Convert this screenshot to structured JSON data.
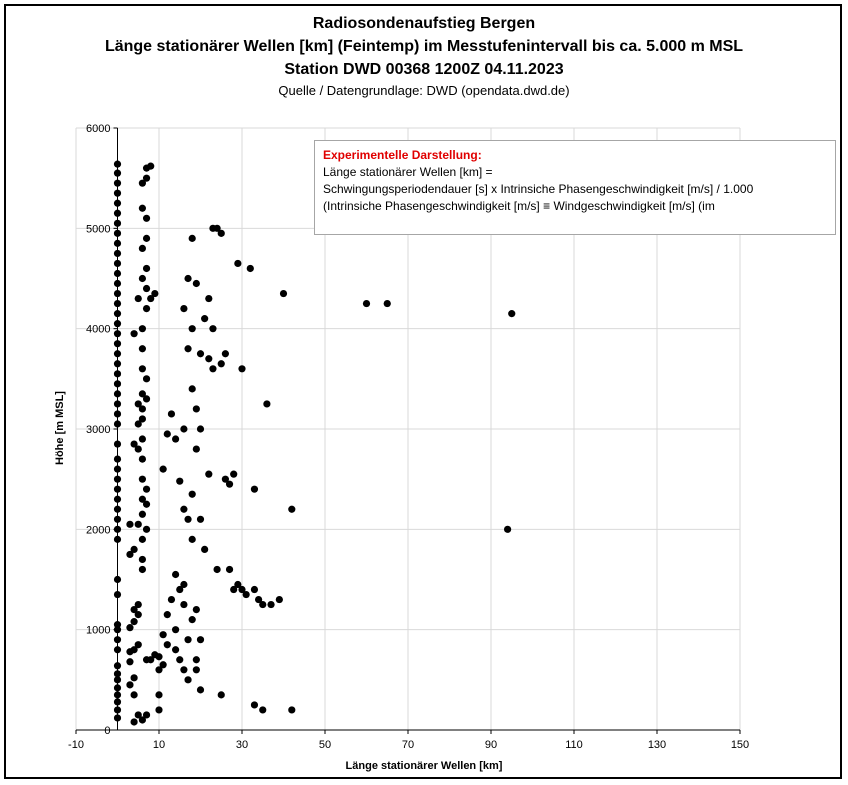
{
  "chart_data": {
    "type": "scatter",
    "title": "Radiosondenaufstieg Bergen",
    "subtitle1": "Länge stationärer Wellen [km] (Feintemp) im Messtufenintervall bis ca. 5.000 m MSL",
    "subtitle2": "Station DWD 00368 1200Z 04.11.2023",
    "source": "Quelle / Datengrundlage: DWD (opendata.dwd.de)",
    "xlabel": "Länge stationärer Wellen [km]",
    "ylabel": "Höhe [m MSL]",
    "xlim": [
      -10,
      150
    ],
    "ylim": [
      0,
      6000
    ],
    "x_ticks": [
      -10,
      10,
      30,
      50,
      70,
      90,
      110,
      130,
      150
    ],
    "y_ticks": [
      0,
      1000,
      2000,
      3000,
      4000,
      5000,
      6000
    ],
    "grid": true,
    "marker_color": "#000000",
    "annotation": {
      "heading": "Experimentelle Darstellung:",
      "lines": [
        "Länge stationärer Wellen [km] =",
        "Schwingungsperiodendauer [s] x Intrinsiche Phasengeschwindigkeit [m/s]  / 1.000",
        "(Intrinsiche Phasengeschwindigkeit [m/s] ≡ Windgeschwindigkeit [m/s] (im"
      ]
    },
    "points": [
      [
        0,
        120
      ],
      [
        0,
        200
      ],
      [
        0,
        280
      ],
      [
        0,
        350
      ],
      [
        0,
        420
      ],
      [
        0,
        500
      ],
      [
        0,
        560
      ],
      [
        0,
        640
      ],
      [
        0,
        800
      ],
      [
        0,
        900
      ],
      [
        0,
        1000
      ],
      [
        0,
        1050
      ],
      [
        0,
        1350
      ],
      [
        0,
        1500
      ],
      [
        0,
        1900
      ],
      [
        0,
        2000
      ],
      [
        0,
        2100
      ],
      [
        0,
        2200
      ],
      [
        0,
        2300
      ],
      [
        0,
        2400
      ],
      [
        0,
        2500
      ],
      [
        0,
        2600
      ],
      [
        0,
        2700
      ],
      [
        0,
        2850
      ],
      [
        0,
        3050
      ],
      [
        0,
        3150
      ],
      [
        0,
        3250
      ],
      [
        0,
        3350
      ],
      [
        0,
        3450
      ],
      [
        0,
        3550
      ],
      [
        0,
        3650
      ],
      [
        0,
        3750
      ],
      [
        0,
        3850
      ],
      [
        0,
        3950
      ],
      [
        0,
        4050
      ],
      [
        0,
        4150
      ],
      [
        0,
        4250
      ],
      [
        0,
        4350
      ],
      [
        0,
        4450
      ],
      [
        0,
        4550
      ],
      [
        0,
        4650
      ],
      [
        0,
        4750
      ],
      [
        0,
        4850
      ],
      [
        0,
        4950
      ],
      [
        0,
        5050
      ],
      [
        0,
        5150
      ],
      [
        0,
        5250
      ],
      [
        0,
        5350
      ],
      [
        0,
        5450
      ],
      [
        0,
        5550
      ],
      [
        0,
        5640
      ],
      [
        3,
        450
      ],
      [
        3,
        680
      ],
      [
        3,
        780
      ],
      [
        3,
        1020
      ],
      [
        3,
        1750
      ],
      [
        3,
        2050
      ],
      [
        4,
        80
      ],
      [
        4,
        350
      ],
      [
        4,
        520
      ],
      [
        4,
        800
      ],
      [
        4,
        1080
      ],
      [
        4,
        1200
      ],
      [
        4,
        1800
      ],
      [
        4,
        2850
      ],
      [
        4,
        3950
      ],
      [
        5,
        150
      ],
      [
        5,
        850
      ],
      [
        5,
        1150
      ],
      [
        5,
        1250
      ],
      [
        5,
        2050
      ],
      [
        5,
        2800
      ],
      [
        5,
        3050
      ],
      [
        5,
        3250
      ],
      [
        5,
        4300
      ],
      [
        6,
        100
      ],
      [
        6,
        1600
      ],
      [
        6,
        1700
      ],
      [
        6,
        1900
      ],
      [
        6,
        2150
      ],
      [
        6,
        2300
      ],
      [
        6,
        2500
      ],
      [
        6,
        2700
      ],
      [
        6,
        2900
      ],
      [
        6,
        3100
      ],
      [
        6,
        3200
      ],
      [
        6,
        3350
      ],
      [
        6,
        3600
      ],
      [
        6,
        3800
      ],
      [
        6,
        4000
      ],
      [
        6,
        4500
      ],
      [
        6,
        4800
      ],
      [
        6,
        5200
      ],
      [
        6,
        5450
      ],
      [
        7,
        150
      ],
      [
        7,
        700
      ],
      [
        7,
        2000
      ],
      [
        7,
        2250
      ],
      [
        7,
        2400
      ],
      [
        7,
        3300
      ],
      [
        7,
        3500
      ],
      [
        7,
        4200
      ],
      [
        7,
        4400
      ],
      [
        7,
        4600
      ],
      [
        7,
        4900
      ],
      [
        7,
        5100
      ],
      [
        7,
        5500
      ],
      [
        7,
        5600
      ],
      [
        8,
        700
      ],
      [
        8,
        4300
      ],
      [
        8,
        5620
      ],
      [
        9,
        750
      ],
      [
        9,
        4350
      ],
      [
        10,
        200
      ],
      [
        10,
        350
      ],
      [
        10,
        600
      ],
      [
        10,
        730
      ],
      [
        11,
        650
      ],
      [
        11,
        950
      ],
      [
        11,
        2600
      ],
      [
        12,
        850
      ],
      [
        12,
        1150
      ],
      [
        12,
        2950
      ],
      [
        13,
        1300
      ],
      [
        13,
        3150
      ],
      [
        14,
        800
      ],
      [
        14,
        1000
      ],
      [
        14,
        1550
      ],
      [
        14,
        2900
      ],
      [
        15,
        700
      ],
      [
        15,
        1400
      ],
      [
        15,
        2480
      ],
      [
        16,
        600
      ],
      [
        16,
        1250
      ],
      [
        16,
        1450
      ],
      [
        16,
        2200
      ],
      [
        16,
        3000
      ],
      [
        16,
        4200
      ],
      [
        17,
        500
      ],
      [
        17,
        900
      ],
      [
        17,
        2100
      ],
      [
        17,
        3800
      ],
      [
        17,
        4500
      ],
      [
        18,
        1100
      ],
      [
        18,
        1900
      ],
      [
        18,
        2350
      ],
      [
        18,
        3400
      ],
      [
        18,
        4000
      ],
      [
        18,
        4900
      ],
      [
        19,
        600
      ],
      [
        19,
        700
      ],
      [
        19,
        1200
      ],
      [
        19,
        2800
      ],
      [
        19,
        3200
      ],
      [
        19,
        4450
      ],
      [
        20,
        400
      ],
      [
        20,
        900
      ],
      [
        20,
        2100
      ],
      [
        20,
        3000
      ],
      [
        20,
        3750
      ],
      [
        21,
        1800
      ],
      [
        21,
        4100
      ],
      [
        22,
        2550
      ],
      [
        22,
        3700
      ],
      [
        22,
        4300
      ],
      [
        23,
        3600
      ],
      [
        23,
        4000
      ],
      [
        23,
        5000
      ],
      [
        24,
        1600
      ],
      [
        24,
        5000
      ],
      [
        25,
        350
      ],
      [
        25,
        3650
      ],
      [
        25,
        4950
      ],
      [
        26,
        2500
      ],
      [
        26,
        3750
      ],
      [
        27,
        1600
      ],
      [
        27,
        2450
      ],
      [
        28,
        1400
      ],
      [
        28,
        2550
      ],
      [
        29,
        1450
      ],
      [
        29,
        4650
      ],
      [
        30,
        1400
      ],
      [
        30,
        3600
      ],
      [
        31,
        1350
      ],
      [
        32,
        4600
      ],
      [
        33,
        250
      ],
      [
        33,
        1400
      ],
      [
        33,
        2400
      ],
      [
        34,
        1300
      ],
      [
        35,
        200
      ],
      [
        35,
        1250
      ],
      [
        36,
        3250
      ],
      [
        37,
        1250
      ],
      [
        39,
        1300
      ],
      [
        40,
        4350
      ],
      [
        42,
        200
      ],
      [
        42,
        2200
      ],
      [
        60,
        4250
      ],
      [
        65,
        4250
      ],
      [
        94,
        2000
      ],
      [
        95,
        4150
      ]
    ]
  }
}
